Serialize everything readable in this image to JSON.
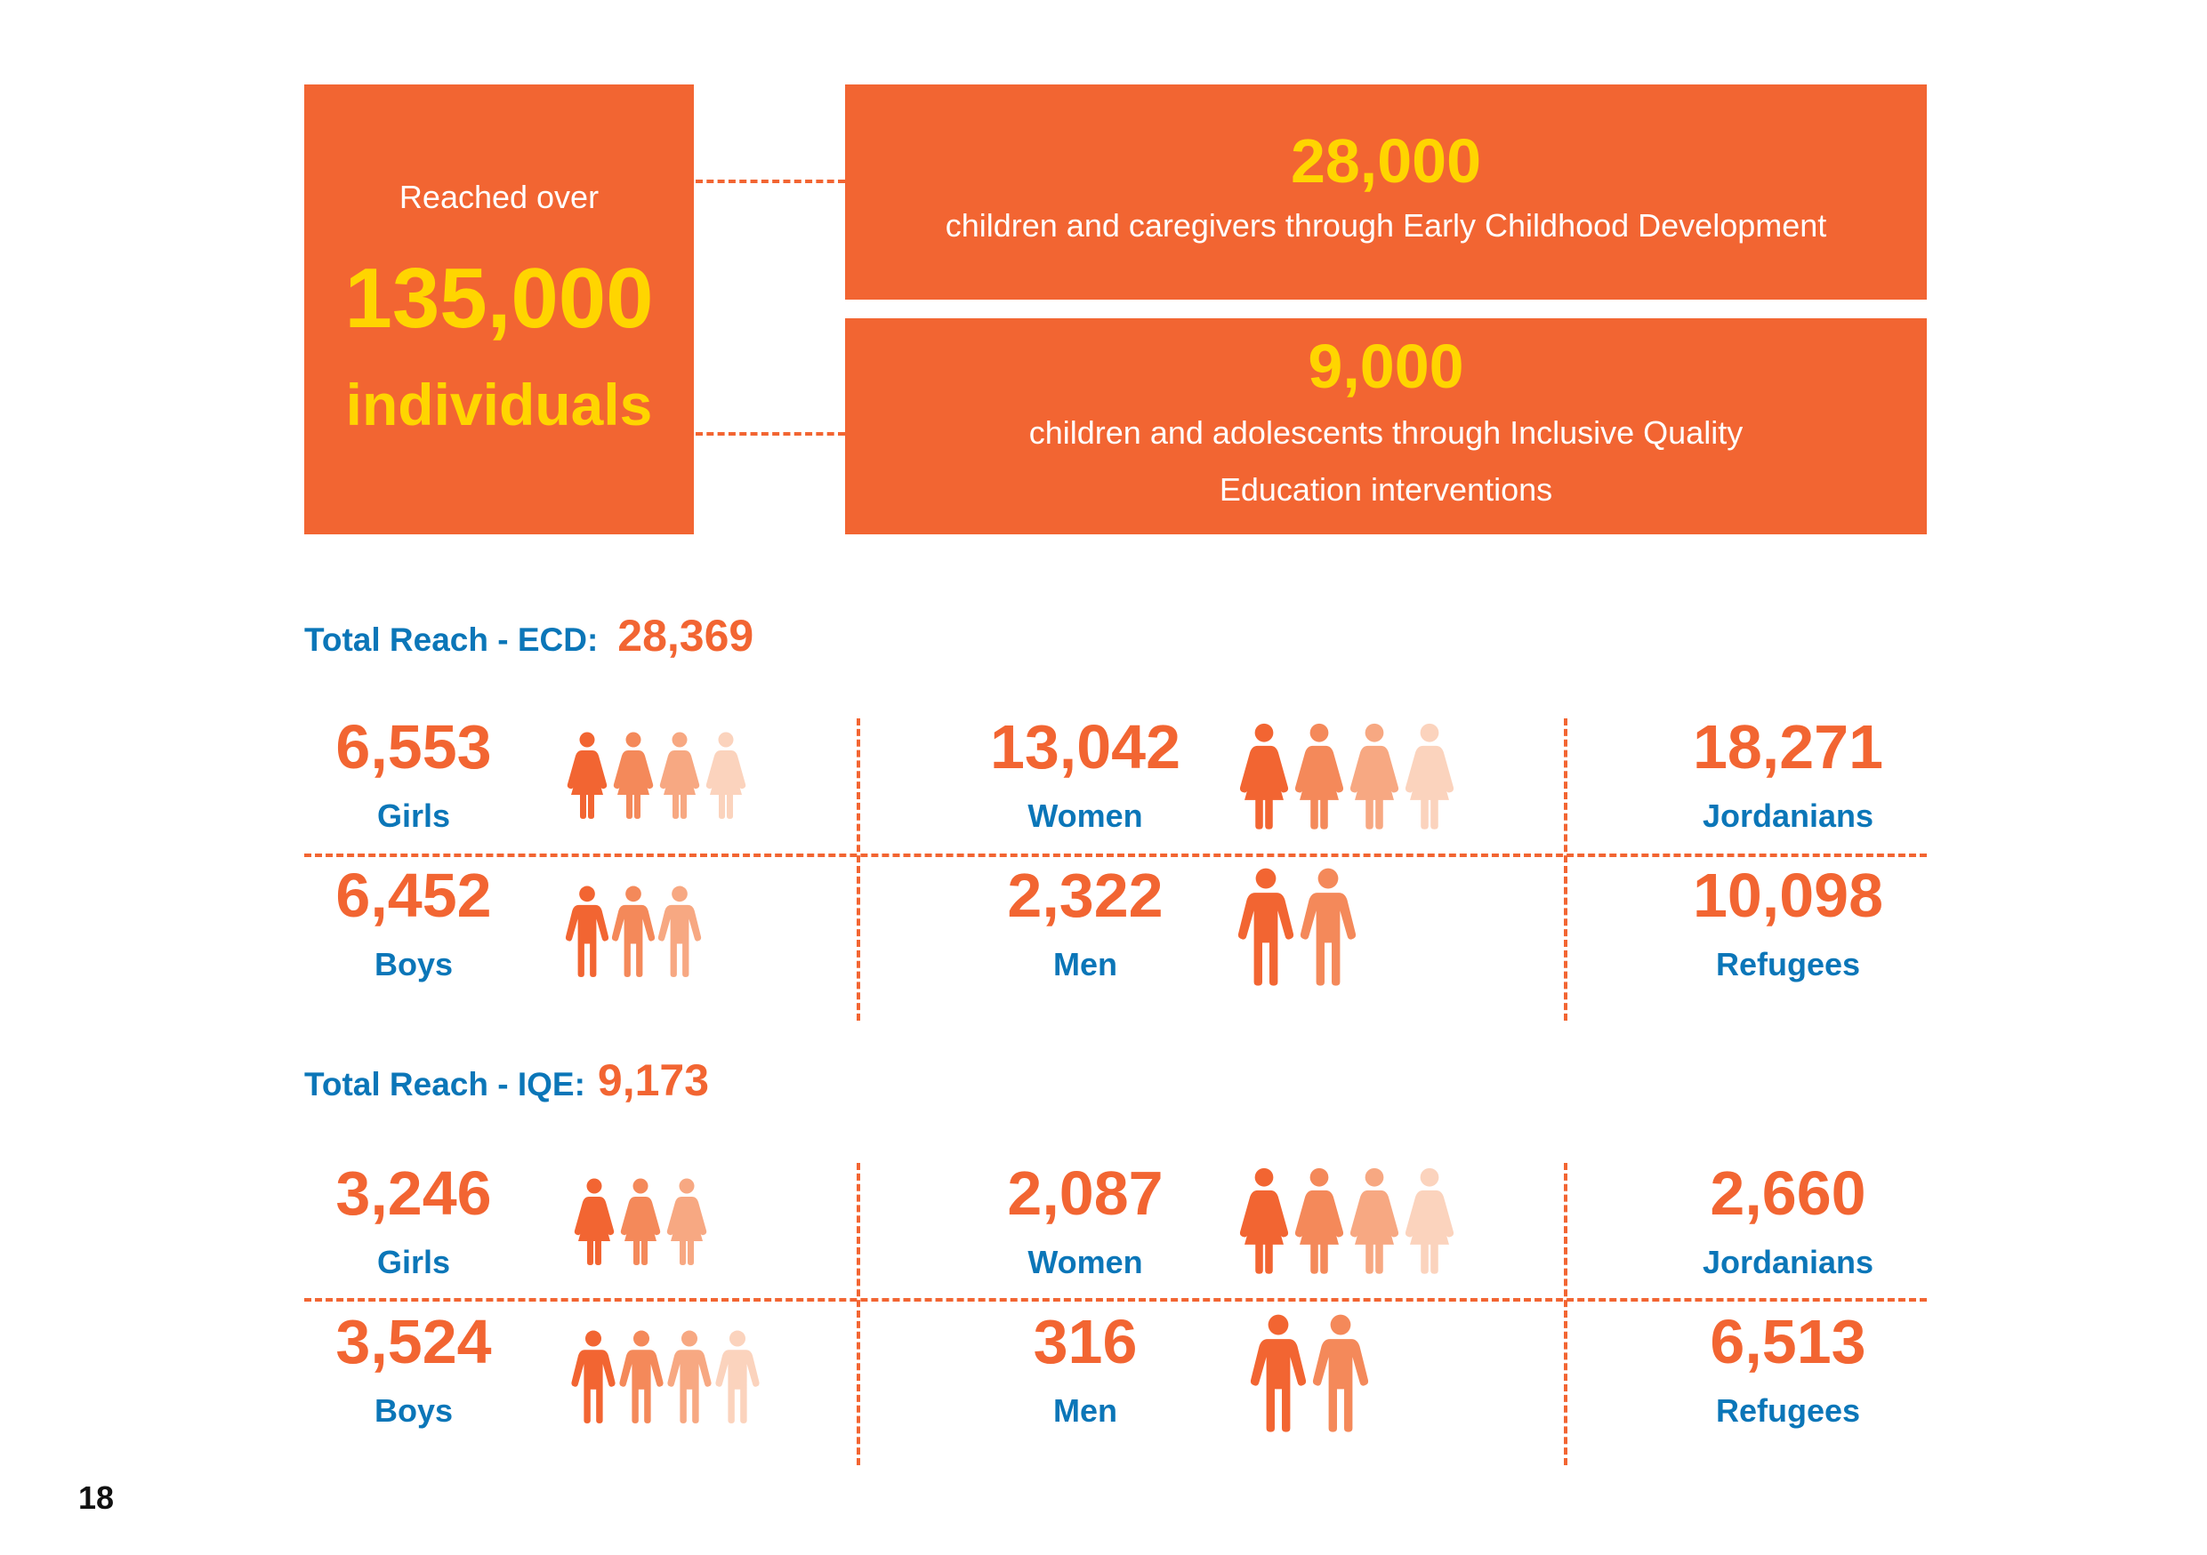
{
  "summary": {
    "reached_over": "Reached over",
    "total": "135,000",
    "individuals": "individuals"
  },
  "ecd_box": {
    "number": "28,000",
    "text": "children and caregivers through Early Childhood Development"
  },
  "iqe_box": {
    "number": "9,000",
    "line1": "children and adolescents through Inclusive Quality",
    "line2": "Education interventions"
  },
  "ecd": {
    "title": "Total Reach - ECD:",
    "total": "28,369",
    "girls": {
      "value": "6,553",
      "label": "Girls"
    },
    "boys": {
      "value": "6,452",
      "label": "Boys"
    },
    "women": {
      "value": "13,042",
      "label": "Women"
    },
    "men": {
      "value": "2,322",
      "label": "Men"
    },
    "jordanians": {
      "value": "18,271",
      "label": "Jordanians"
    },
    "refugees": {
      "value": "10,098",
      "label": "Refugees"
    }
  },
  "iqe": {
    "title": "Total Reach - IQE:",
    "total": "9,173",
    "girls": {
      "value": "3,246",
      "label": "Girls"
    },
    "boys": {
      "value": "3,524",
      "label": "Boys"
    },
    "women": {
      "value": "2,087",
      "label": "Women"
    },
    "men": {
      "value": "316",
      "label": "Men"
    },
    "jordanians": {
      "value": "2,660",
      "label": "Jordanians"
    },
    "refugees": {
      "value": "6,513",
      "label": "Refugees"
    }
  },
  "page_number": "18",
  "colors": {
    "orange": "#f26532",
    "yellow": "#ffd500",
    "blue": "#0b76b8",
    "shade1": "#f26532",
    "shade2": "#f4895a",
    "shade3": "#f7a882",
    "shade4": "#fbd3bd"
  }
}
